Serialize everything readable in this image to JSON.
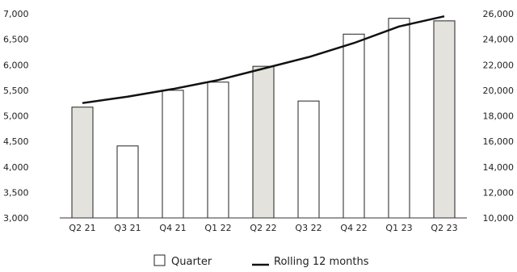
{
  "chart_data": {
    "type": "bar",
    "categories": [
      "Q2 21",
      "Q3 21",
      "Q4 21",
      "Q1 22",
      "Q2 22",
      "Q3 22",
      "Q4 22",
      "Q1 23",
      "Q2 23"
    ],
    "series": [
      {
        "name": "Quarter",
        "type": "bar",
        "axis": "left",
        "values": [
          5170,
          4410,
          5500,
          5660,
          5970,
          5290,
          6600,
          6910,
          6860
        ],
        "highlighted": [
          true,
          false,
          false,
          false,
          true,
          false,
          false,
          false,
          true
        ]
      },
      {
        "name": "Rolling 12 months",
        "type": "line",
        "axis": "right",
        "values": [
          19000,
          19500,
          20100,
          20800,
          21700,
          22600,
          23700,
          25000,
          25800
        ]
      }
    ],
    "y_left": {
      "ylim": [
        3000,
        7000
      ],
      "ticks": [
        3000,
        3500,
        4000,
        4500,
        5000,
        5500,
        6000,
        6500,
        7000
      ]
    },
    "y_right": {
      "ylim": [
        10000,
        26000
      ],
      "ticks": [
        10000,
        12000,
        14000,
        16000,
        18000,
        20000,
        22000,
        24000,
        26000
      ]
    },
    "y_left_tick_labels": [
      "3,000",
      "3,500",
      "4,000",
      "4,500",
      "5,000",
      "5,500",
      "6,000",
      "6,500",
      "7,000"
    ],
    "y_right_tick_labels": [
      "10,000",
      "12,000",
      "14,000",
      "16,000",
      "18,000",
      "20,000",
      "22,000",
      "24,000",
      "26,000"
    ],
    "grid": false,
    "legend_position": "bottom-center",
    "colors": {
      "bar_fill": "#ffffff",
      "bar_highlight_fill": "#e4e2dc",
      "bar_stroke": "#222222",
      "line": "#111111",
      "axis": "#333333"
    }
  }
}
